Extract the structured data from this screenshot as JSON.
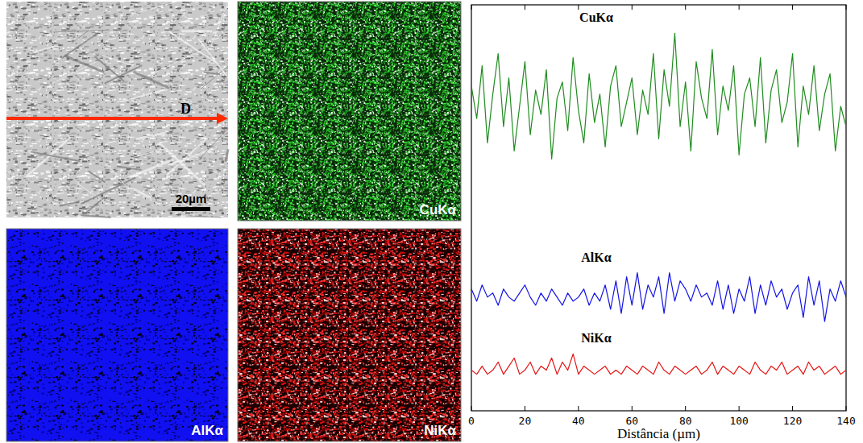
{
  "panels": {
    "sem": {
      "marker": "D",
      "scale_bar": "20µm"
    },
    "maps": [
      "CuKα",
      "AlKα",
      "NiKα"
    ]
  },
  "chart_data": {
    "type": "line",
    "x_label": "Distância (µm)",
    "x": [
      0,
      2,
      4,
      6,
      8,
      10,
      12,
      14,
      16,
      18,
      20,
      22,
      24,
      26,
      28,
      30,
      32,
      34,
      36,
      38,
      40,
      42,
      44,
      46,
      48,
      50,
      52,
      54,
      56,
      58,
      60,
      62,
      64,
      66,
      68,
      70,
      72,
      74,
      76,
      78,
      80,
      82,
      84,
      86,
      88,
      90,
      92,
      94,
      96,
      98,
      100,
      102,
      104,
      106,
      108,
      110,
      112,
      114,
      116,
      118,
      120,
      122,
      124,
      126,
      128,
      130,
      132,
      134,
      136,
      138,
      140
    ],
    "series": [
      {
        "name": "CuKα",
        "color": "#1f8c1f",
        "values": [
          80,
          72,
          85,
          66,
          78,
          88,
          70,
          82,
          64,
          75,
          86,
          68,
          79,
          73,
          84,
          62,
          77,
          81,
          69,
          87,
          74,
          66,
          83,
          71,
          78,
          65,
          80,
          85,
          70,
          76,
          82,
          68,
          79,
          73,
          88,
          67,
          84,
          75,
          93,
          70,
          81,
          64,
          86,
          77,
          72,
          89,
          68,
          80,
          74,
          85,
          63,
          78,
          82,
          70,
          87,
          66,
          79,
          84,
          71,
          76,
          88,
          65,
          80,
          73,
          85,
          69,
          78,
          83,
          64,
          75,
          70
        ]
      },
      {
        "name": "AlKα",
        "color": "#1414e6",
        "values": [
          30,
          27,
          31,
          28,
          29,
          26,
          30,
          28,
          27,
          29,
          31,
          28,
          26,
          29,
          27,
          30,
          28,
          26,
          29,
          27,
          28,
          30,
          26,
          29,
          27,
          31,
          25,
          32,
          24,
          33,
          26,
          34,
          25,
          31,
          28,
          33,
          24,
          34,
          27,
          32,
          30,
          27,
          31,
          28,
          29,
          26,
          32,
          25,
          31,
          24,
          30,
          27,
          33,
          24,
          31,
          26,
          32,
          28,
          30,
          25,
          29,
          31,
          23,
          33,
          26,
          32,
          22,
          30,
          27,
          32,
          28
        ]
      },
      {
        "name": "NiKα",
        "color": "#e61414",
        "values": [
          10,
          9,
          11,
          9,
          10,
          12,
          9,
          11,
          13,
          9,
          10,
          12,
          9,
          11,
          10,
          13,
          9,
          12,
          10,
          14,
          9,
          11,
          10,
          9,
          10,
          11,
          9,
          10,
          9,
          11,
          10,
          9,
          11,
          10,
          9,
          12,
          10,
          9,
          11,
          10,
          9,
          10,
          11,
          9,
          10,
          12,
          9,
          11,
          10,
          9,
          11,
          10,
          9,
          12,
          10,
          9,
          11,
          10,
          12,
          9,
          10,
          11,
          9,
          12,
          10,
          11,
          9,
          10,
          11,
          9,
          10
        ]
      }
    ],
    "xlim": [
      0,
      140
    ],
    "xticks": [
      0,
      20,
      40,
      60,
      80,
      100,
      120,
      140
    ],
    "ylim": [
      0,
      100
    ],
    "tick_labels": "x"
  }
}
